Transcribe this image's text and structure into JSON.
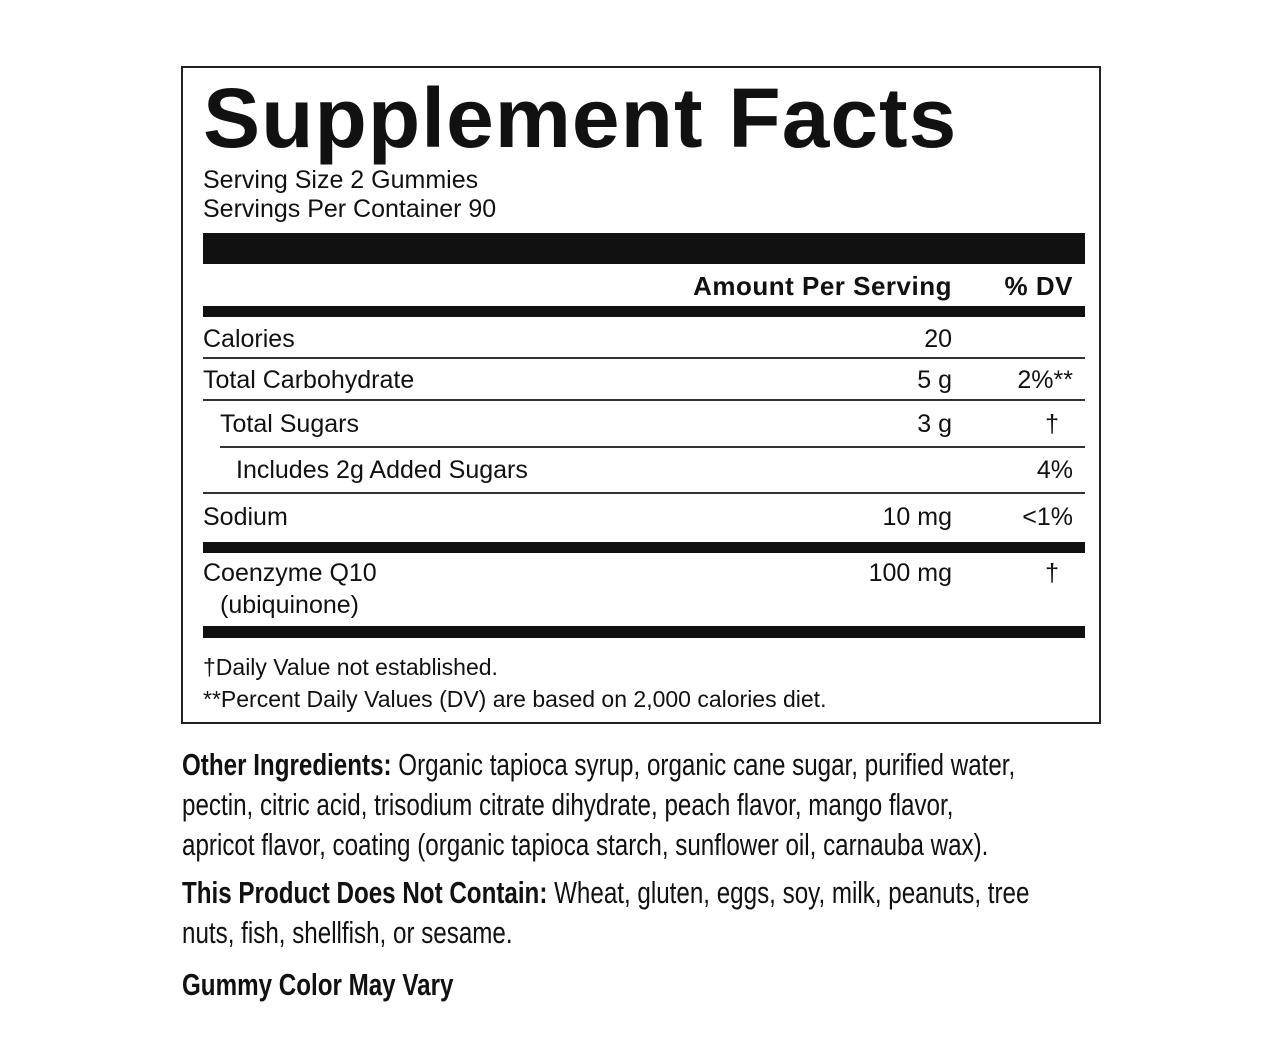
{
  "title": "Supplement Facts",
  "serving_size": "Serving Size 2 Gummies",
  "servings_per_container": "Servings Per Container 90",
  "header": {
    "amount": "Amount Per Serving",
    "dv": "% DV"
  },
  "rows": [
    {
      "name": "Calories",
      "amount": "20",
      "dv": ""
    },
    {
      "name": "Total Carbohydrate",
      "amount": "5 g",
      "dv": "2%**"
    },
    {
      "name": "Total Sugars",
      "amount": "3 g",
      "dv": "†"
    },
    {
      "name": "Includes 2g Added Sugars",
      "amount": "",
      "dv": "4%"
    },
    {
      "name": "Sodium",
      "amount": "10 mg",
      "dv": "<1%"
    },
    {
      "name": "Coenzyme Q10",
      "sub": "(ubiquinone)",
      "amount": "100 mg",
      "dv": "†"
    }
  ],
  "footnotes": [
    "†Daily Value not established.",
    "**Percent Daily Values (DV) are based on 2,000 calories diet."
  ],
  "other_ingredients": {
    "label": "Other Ingredients:",
    "lines": [
      " Organic tapioca syrup, organic cane sugar, purified water,",
      "pectin, citric acid, trisodium citrate dihydrate, peach flavor, mango flavor,",
      "apricot flavor, coating (organic tapioca starch, sunflower oil, carnauba wax)."
    ]
  },
  "does_not_contain": {
    "label": "This Product Does Not Contain:",
    "lines": [
      " Wheat, gluten, eggs, soy, milk, peanuts, tree",
      "nuts, fish, shellfish, or sesame."
    ]
  },
  "color_note": "Gummy Color May Vary"
}
